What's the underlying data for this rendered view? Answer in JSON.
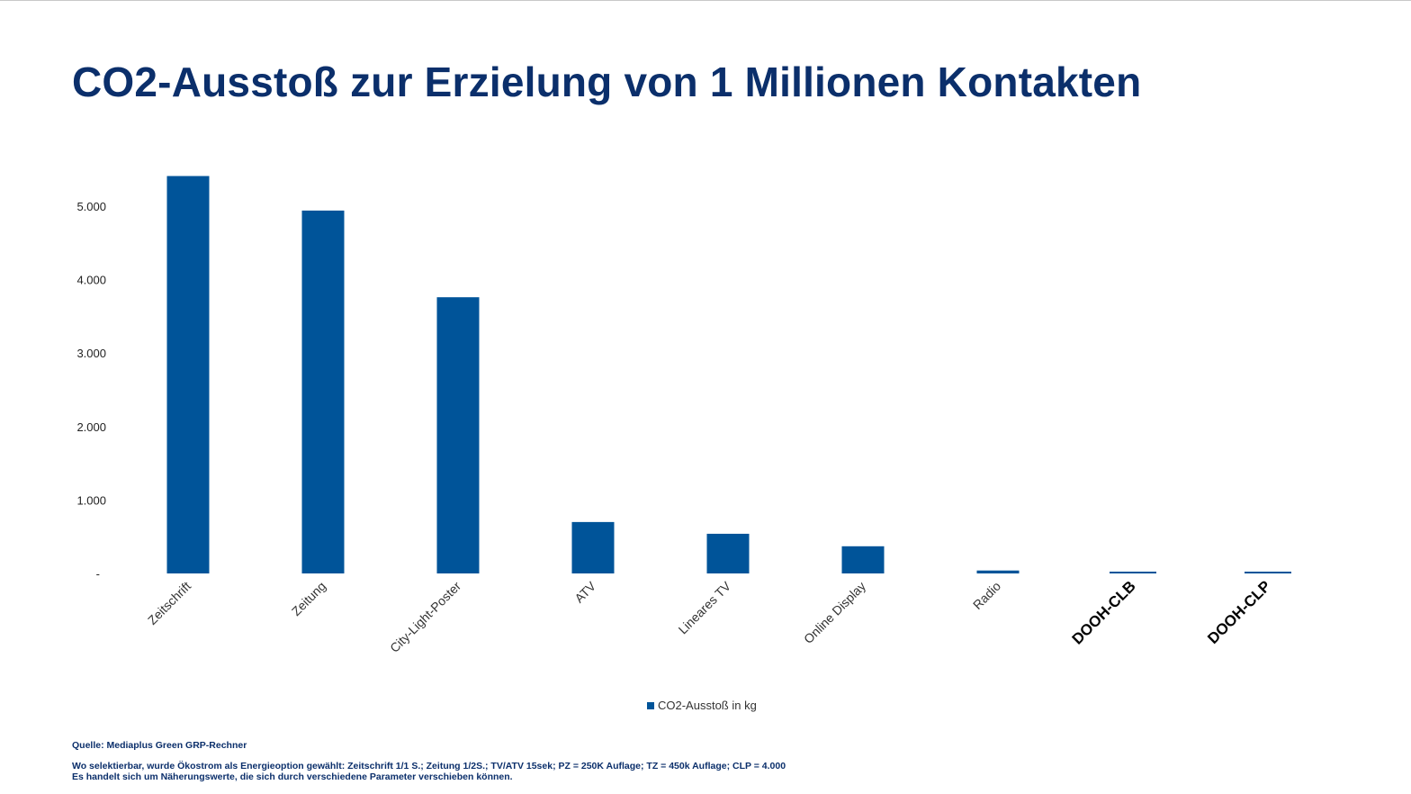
{
  "title": "CO2-Ausstoß zur Erzielung von 1 Millionen Kontakten",
  "colors": {
    "bar": "#005499",
    "title": "#0b2f6b"
  },
  "chart_data": {
    "type": "bar",
    "categories": [
      "Zeitschrift",
      "Zeitung",
      "City-Light-Poster",
      "ATV",
      "Lineares TV",
      "Online Display",
      "Radio",
      "DOOH-CLB",
      "DOOH-CLP"
    ],
    "bold_categories": [
      "DOOH-CLB",
      "DOOH-CLP"
    ],
    "series": [
      {
        "name": "CO2-Ausstoß in kg",
        "values": [
          5410,
          4940,
          3760,
          700,
          540,
          370,
          40,
          15,
          15
        ]
      }
    ],
    "ylim": [
      0,
      5400
    ],
    "yticks": [
      0,
      1000,
      2000,
      3000,
      4000,
      5000
    ],
    "ytick_labels": [
      "-",
      "1.000",
      "2.000",
      "3.000",
      "4.000",
      "5.000"
    ],
    "legend": "bottom-center"
  },
  "legend": {
    "label": "CO2-Ausstoß in kg"
  },
  "footnotes": {
    "source": "Quelle: Mediaplus Green GRP-Rechner",
    "note1": "Wo selektierbar, wurde Ökostrom als Energieoption gewählt: Zeitschrift 1/1 S.; Zeitung 1/2S.; TV/ATV 15sek; PZ = 250K Auflage; TZ = 450k Auflage; CLP = 4.000",
    "note2": "Es handelt sich um Näherungswerte, die sich durch verschiedene Parameter verschieben können."
  }
}
